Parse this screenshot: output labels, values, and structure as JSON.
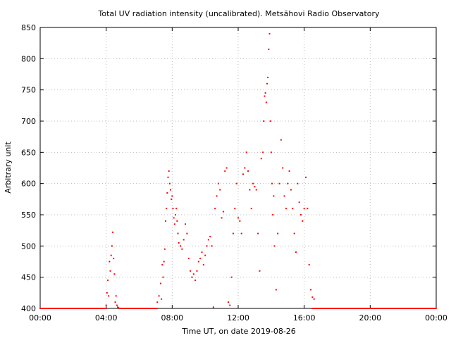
{
  "chart_data": {
    "type": "scatter",
    "title": "Total UV radiation intensity (uncalibrated). Metsähovi Radio Observatory",
    "xlabel": "Time UT, on date 2019-08-26",
    "ylabel": "Arbitrary unit",
    "xlim": [
      0,
      24
    ],
    "ylim": [
      400,
      850
    ],
    "x_tick_labels": [
      "00:00",
      "04:00",
      "08:00",
      "12:00",
      "16:00",
      "20:00",
      "00:00"
    ],
    "x_tick_values": [
      0,
      4,
      8,
      12,
      16,
      20,
      24
    ],
    "y_ticks": [
      400,
      450,
      500,
      550,
      600,
      650,
      700,
      750,
      800,
      850
    ],
    "grid": true,
    "point_color": "#ff0000",
    "series": [
      {
        "x_unit": "hours UT",
        "x": [
          4.0,
          4.05,
          4.1,
          4.15,
          4.2,
          4.25,
          4.3,
          4.35,
          4.4,
          4.45,
          4.5,
          4.55,
          4.6,
          4.65,
          4.7,
          4.75,
          7.1,
          7.2,
          7.3,
          7.35,
          7.4,
          7.45,
          7.5,
          7.55,
          7.6,
          7.65,
          7.7,
          7.75,
          7.8,
          7.85,
          7.9,
          7.95,
          8.0,
          8.05,
          8.1,
          8.15,
          8.2,
          8.25,
          8.3,
          8.35,
          8.4,
          8.5,
          8.6,
          8.7,
          8.8,
          8.9,
          9.0,
          9.1,
          9.2,
          9.3,
          9.4,
          9.5,
          9.6,
          9.7,
          9.8,
          9.9,
          10.0,
          10.1,
          10.2,
          10.3,
          10.4,
          10.5,
          10.6,
          10.7,
          10.8,
          10.9,
          11.0,
          11.1,
          11.2,
          11.3,
          11.4,
          11.5,
          11.6,
          11.7,
          11.8,
          11.9,
          12.0,
          12.1,
          12.2,
          12.3,
          12.4,
          12.5,
          12.6,
          12.7,
          12.8,
          12.9,
          13.0,
          13.1,
          13.2,
          13.3,
          13.4,
          13.5,
          13.55,
          13.6,
          13.65,
          13.7,
          13.75,
          13.8,
          13.85,
          13.9,
          13.95,
          14.0,
          14.05,
          14.1,
          14.15,
          14.2,
          14.3,
          14.4,
          14.5,
          14.6,
          14.7,
          14.8,
          14.9,
          15.0,
          15.1,
          15.2,
          15.3,
          15.4,
          15.5,
          15.6,
          15.7,
          15.8,
          15.9,
          16.0,
          16.1,
          16.2,
          16.3,
          16.4,
          16.5,
          16.6
        ],
        "y": [
          405,
          425,
          445,
          420,
          475,
          460,
          485,
          500,
          522,
          480,
          455,
          410,
          420,
          405,
          402,
          401,
          410,
          420,
          440,
          415,
          470,
          450,
          475,
          495,
          540,
          560,
          585,
          610,
          620,
          600,
          590,
          575,
          580,
          560,
          545,
          535,
          550,
          560,
          540,
          520,
          505,
          500,
          495,
          510,
          535,
          520,
          480,
          460,
          450,
          455,
          445,
          460,
          475,
          480,
          490,
          470,
          485,
          500,
          510,
          515,
          500,
          402,
          560,
          580,
          600,
          590,
          545,
          555,
          620,
          625,
          410,
          405,
          450,
          520,
          560,
          600,
          545,
          540,
          520,
          615,
          625,
          650,
          620,
          590,
          560,
          600,
          595,
          590,
          520,
          460,
          640,
          650,
          700,
          740,
          745,
          730,
          760,
          770,
          815,
          840,
          700,
          650,
          600,
          550,
          580,
          500,
          430,
          520,
          600,
          670,
          625,
          580,
          560,
          600,
          620,
          590,
          560,
          520,
          490,
          600,
          570,
          550,
          540,
          560,
          610,
          560,
          470,
          430,
          418,
          415
        ]
      },
      {
        "name": "",
        "x_unit": "hours UT",
        "x_ranges_baseline": [
          [
            0,
            4.0
          ],
          [
            4.8,
            7.1
          ],
          [
            16.5,
            24
          ]
        ],
        "baseline_value": 400
      }
    ]
  }
}
